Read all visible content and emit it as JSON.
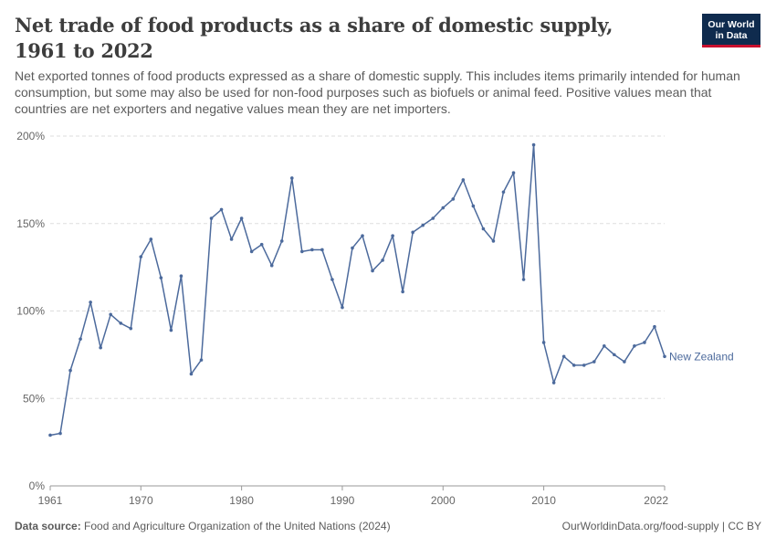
{
  "header": {
    "title": "Net trade of food products as a share of domestic supply, 1961 to 2022",
    "subtitle": "Net exported tonnes of food products expressed as a share of domestic supply. This includes items primarily intended for human consumption, but some may also be used for non-food purposes such as biofuels or animal feed. Positive values mean that countries are net exporters and negative values mean they are net importers.",
    "logo_line1": "Our World",
    "logo_line2": "in Data"
  },
  "footer": {
    "source_label": "Data source:",
    "source_text": "Food and Agriculture Organization of the United Nations (2024)",
    "url_text": "OurWorldinData.org/food-supply | CC BY"
  },
  "colors": {
    "series": "#4c6a9c",
    "grid": "#dddddd",
    "axis": "#999999"
  },
  "chart_data": {
    "type": "line",
    "title": "Net trade of food products as a share of domestic supply, 1961 to 2022",
    "xlabel": "",
    "ylabel": "",
    "xlim": [
      1961,
      2022
    ],
    "ylim": [
      0,
      200
    ],
    "y_ticks": [
      0,
      50,
      100,
      150,
      200
    ],
    "y_tick_labels": [
      "0%",
      "50%",
      "100%",
      "150%",
      "200%"
    ],
    "x_ticks": [
      1961,
      1970,
      1980,
      1990,
      2000,
      2010,
      2022
    ],
    "x_tick_labels": [
      "1961",
      "1970",
      "1980",
      "1990",
      "2000",
      "2010",
      "2022"
    ],
    "grid": true,
    "series": [
      {
        "name": "New Zealand",
        "x": [
          1961,
          1962,
          1963,
          1964,
          1965,
          1966,
          1967,
          1968,
          1969,
          1970,
          1971,
          1972,
          1973,
          1974,
          1975,
          1976,
          1977,
          1978,
          1979,
          1980,
          1981,
          1982,
          1983,
          1984,
          1985,
          1986,
          1987,
          1988,
          1989,
          1990,
          1991,
          1992,
          1993,
          1994,
          1995,
          1996,
          1997,
          1998,
          1999,
          2000,
          2001,
          2002,
          2003,
          2004,
          2005,
          2006,
          2007,
          2008,
          2009,
          2010,
          2011,
          2012,
          2013,
          2014,
          2015,
          2016,
          2017,
          2018,
          2019,
          2020,
          2021,
          2022
        ],
        "values": [
          29,
          30,
          66,
          84,
          105,
          79,
          98,
          93,
          90,
          131,
          141,
          119,
          89,
          120,
          64,
          72,
          153,
          158,
          141,
          153,
          134,
          138,
          126,
          140,
          176,
          134,
          135,
          135,
          118,
          102,
          136,
          143,
          123,
          129,
          143,
          111,
          145,
          149,
          153,
          159,
          164,
          175,
          160,
          147,
          140,
          168,
          179,
          118,
          195,
          82,
          59,
          74,
          69,
          69,
          71,
          80,
          75,
          71,
          80,
          82,
          91,
          74
        ]
      }
    ]
  }
}
